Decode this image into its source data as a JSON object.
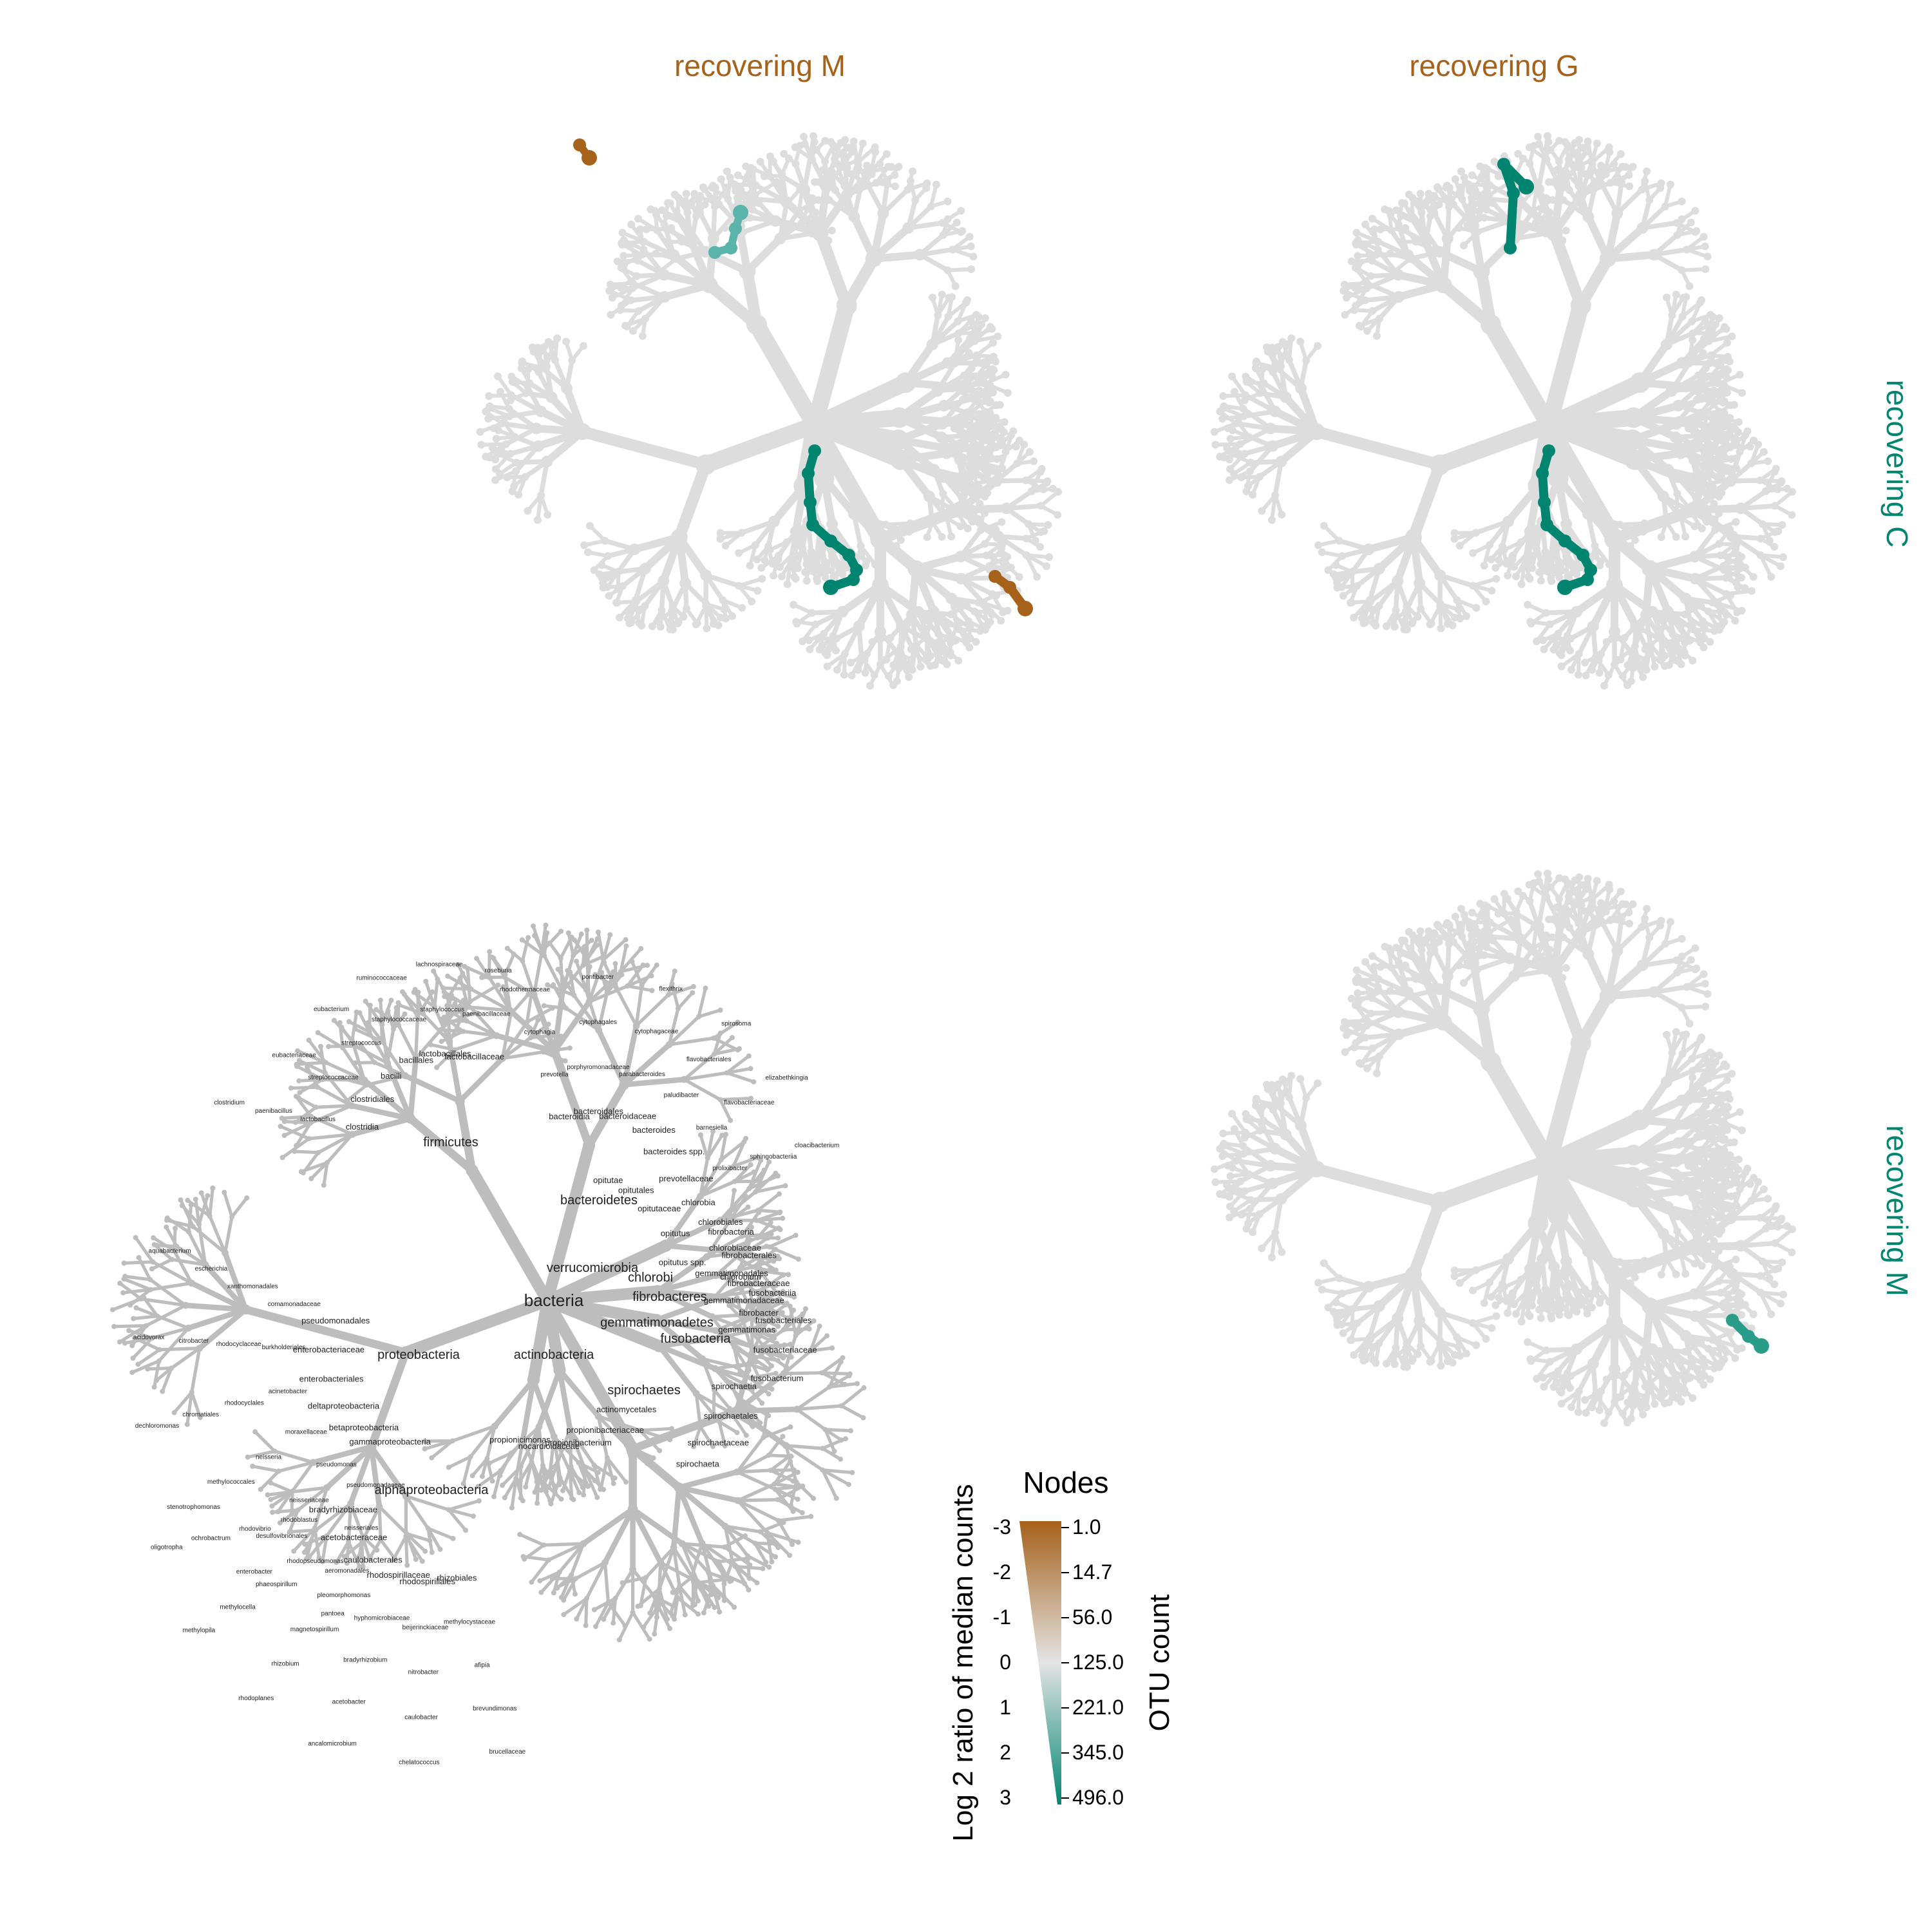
{
  "panel_titles": {
    "top_left": "recovering M",
    "top_right": "recovering G",
    "right_row1": "recovering C",
    "right_row2": "recovering M"
  },
  "colors": {
    "brown": "#a6611a",
    "teal": "#018571",
    "teal_light": "#5ab4ac",
    "grey_tree": "#dddddd",
    "grey_key": "#bdbdbd"
  },
  "legend": {
    "title": "Nodes",
    "left_axis_label": "Log 2 ratio of median counts",
    "right_axis_label": "OTU count",
    "left_ticks": [
      "-3",
      "-2",
      "-1",
      "0",
      "1",
      "2",
      "3"
    ],
    "right_ticks": [
      "1.0",
      "14.7",
      "56.0",
      "125.0",
      "221.0",
      "345.0",
      "496.0"
    ]
  },
  "key_tree": {
    "root": "bacteria",
    "clades": [
      {
        "name": "proteobacteria",
        "labels": [
          "gammaproteobacteria",
          "betaproteobacteria",
          "deltaproteobacteria",
          "enterobacteriales",
          "enterobacteriaceae",
          "pseudomonadales",
          "pseudomonadaceae",
          "pseudomonas",
          "moraxellaceae",
          "acinetobacter",
          "burkholderiales",
          "comamonadaceae",
          "neisseriales",
          "neisseriaceae",
          "neisseria",
          "rhodocyclales",
          "rhodocyclaceae",
          "xanthomonadales",
          "aeromonadales",
          "desulfovibrionales",
          "methylococcales",
          "chromatiales",
          "citrobacter",
          "escherichia",
          "pantoea",
          "enterobacter",
          "stenotrophomonas",
          "dechloromonas",
          "acidovorax",
          "aquabacterium"
        ]
      },
      {
        "name": "alphaproteobacteria",
        "labels": [
          "rhizobiales",
          "rhodospirillales",
          "rhodospirillaceae",
          "caulobacterales",
          "acetobacteraceae",
          "bradyrhizobiaceae",
          "methylocystaceae",
          "beijerinckiaceae",
          "hyphomicrobiaceae",
          "pleomorphomonas",
          "rhodopseudomonas",
          "rhodoblastus",
          "afipia",
          "nitrobacter",
          "bradyrhizobium",
          "magnetospirillum",
          "phaeospirillum",
          "rhodovibrio",
          "brevundimonas",
          "caulobacter",
          "acetobacter",
          "rhizobium",
          "methylocella",
          "ochrobactrum",
          "brucellaceae",
          "chelatococcus",
          "ancalomicrobium",
          "rhodoplanes",
          "methylopila",
          "oligotropha"
        ]
      },
      {
        "name": "bacteroidetes",
        "labels": [
          "bacteroidia",
          "bacteroidales",
          "bacteroidaceae",
          "bacteroides",
          "bacteroides spp.",
          "prevotellaceae",
          "prevotella",
          "porphyromonadaceae",
          "parabacteroides",
          "paludibacter",
          "barnesiella",
          "prolixibacter",
          "cytophagia",
          "cytophagales",
          "cytophagaceae",
          "flavobacteriales",
          "flavobacteriaceae",
          "sphingobacteriia",
          "rhodothermaceae",
          "pontibacter",
          "flexithrix",
          "spirosoma",
          "elizabethkingia",
          "cloacibacterium"
        ]
      },
      {
        "name": "firmicutes",
        "labels": [
          "clostridia",
          "clostridiales",
          "bacilli",
          "bacillales",
          "lactobacillales",
          "lactobacillaceae",
          "lactobacillus",
          "streptococcaceae",
          "streptococcus",
          "staphylococcaceae",
          "staphylococcus",
          "paenibacillaceae",
          "paenibacillus",
          "eubacteriaceae",
          "eubacterium",
          "ruminococcaceae",
          "lachnospiraceae",
          "roseburia",
          "clostridium"
        ]
      },
      {
        "name": "verrucomicrobia",
        "labels": [
          "opitutae",
          "opitutales",
          "opitutaceae",
          "opitutus",
          "opitutus spp."
        ]
      },
      {
        "name": "chlorobi",
        "labels": [
          "chlorobia",
          "chlorobiales",
          "chlorobiaceae",
          "chlorobium"
        ]
      },
      {
        "name": "gemmatimonadetes",
        "labels": [
          "gemmatimonadales",
          "gemmatimonadaceae",
          "gemmatimonas"
        ]
      },
      {
        "name": "actinobacteria",
        "labels": [
          "actinomycetales",
          "propionibacteriaceae",
          "propionibacterium",
          "nocardioidaceae",
          "propionicimonas"
        ]
      },
      {
        "name": "spirochaetes",
        "labels": [
          "spirochaetia",
          "spirochaetales",
          "spirochaetaceae",
          "spirochaeta"
        ]
      },
      {
        "name": "fusobacteria",
        "labels": [
          "fusobacteriia",
          "fusobacteriales",
          "fusobacteriaceae",
          "fusobacterium"
        ]
      },
      {
        "name": "fibrobacteres",
        "labels": [
          "fibrobacteria",
          "fibrobacterales",
          "fibrobacteraceae",
          "fibrobacter"
        ]
      }
    ]
  }
}
